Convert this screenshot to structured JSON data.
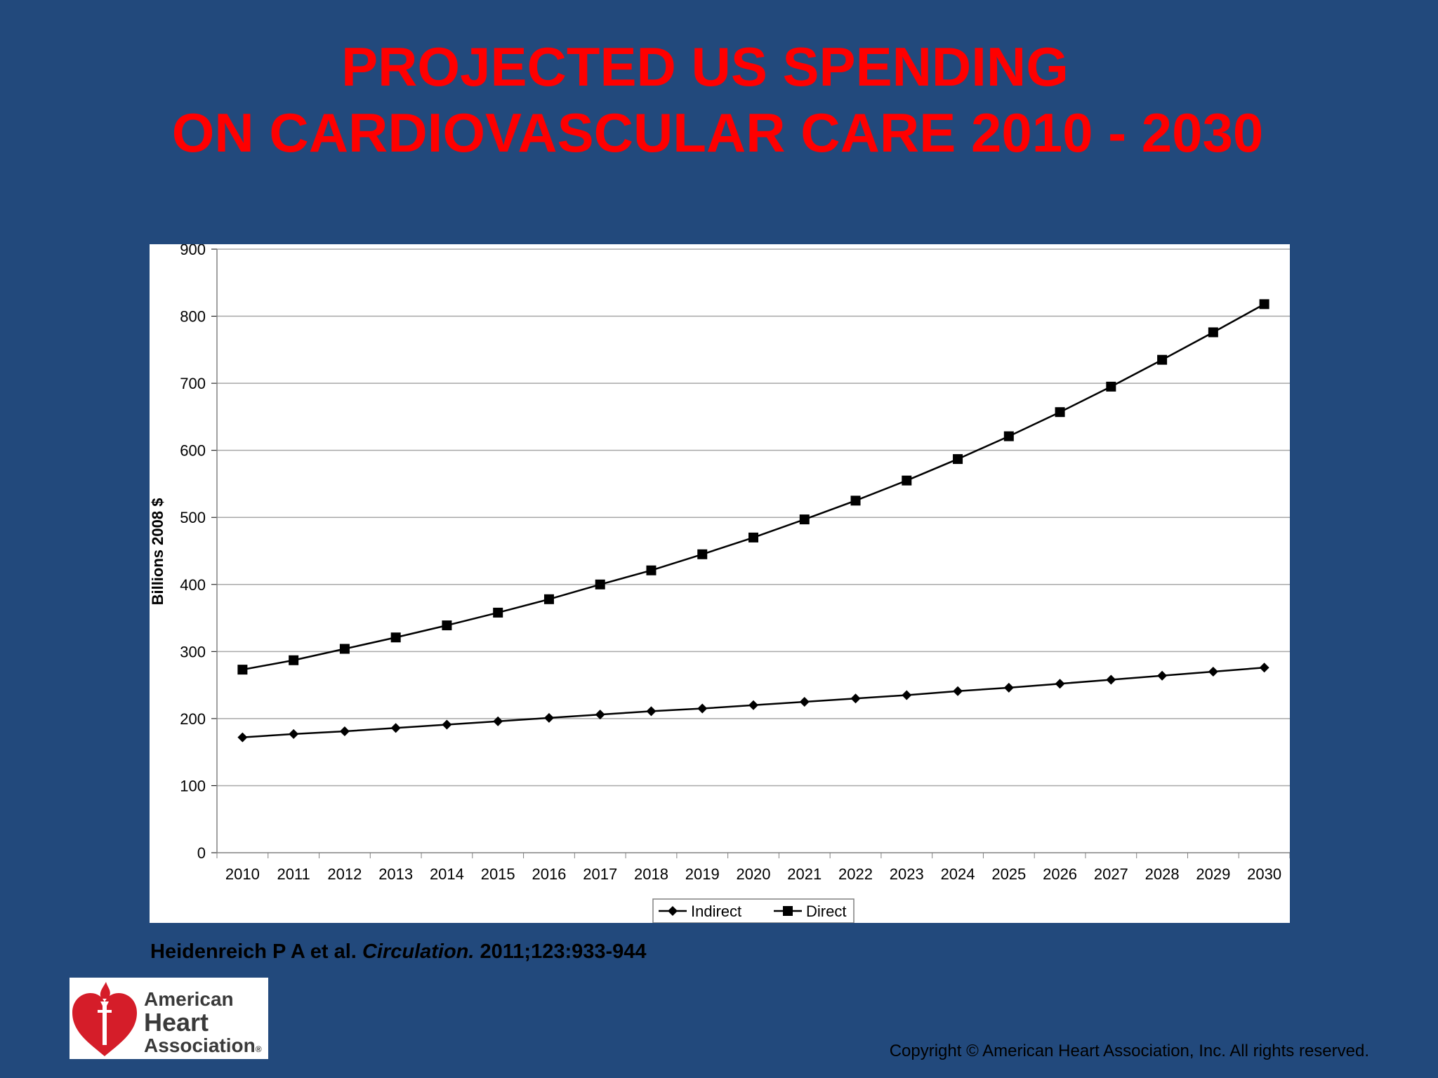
{
  "slide": {
    "title_line1": "PROJECTED US SPENDING",
    "title_line2": "ON CARDIOVASCULAR CARE 2010 - 2030",
    "citation_authors": "Heidenreich P A et al.",
    "citation_journal": "Circulation.",
    "citation_ref": "2011;123:933-944",
    "copyright": "Copyright © American Heart Association, Inc. All rights reserved.",
    "logo": {
      "line1": "American",
      "line2": "Heart",
      "line3": "Association",
      "mark": "®"
    }
  },
  "colors": {
    "background": "#22497c",
    "title": "#ff0000",
    "logo_red": "#d51d29"
  },
  "chart_data": {
    "type": "line",
    "title": "",
    "xlabel": "",
    "ylabel": "Billions 2008 $",
    "ylim": [
      0,
      900
    ],
    "yticks": [
      0,
      100,
      200,
      300,
      400,
      500,
      600,
      700,
      800,
      900
    ],
    "grid": true,
    "legend_position": "bottom-center",
    "categories": [
      "2010",
      "2011",
      "2012",
      "2013",
      "2014",
      "2015",
      "2016",
      "2017",
      "2018",
      "2019",
      "2020",
      "2021",
      "2022",
      "2023",
      "2024",
      "2025",
      "2026",
      "2027",
      "2028",
      "2029",
      "2030"
    ],
    "series": [
      {
        "name": "Indirect",
        "marker": "diamond",
        "values": [
          172,
          177,
          181,
          186,
          191,
          196,
          201,
          206,
          211,
          215,
          220,
          225,
          230,
          235,
          241,
          246,
          252,
          258,
          264,
          270,
          276
        ]
      },
      {
        "name": "Direct",
        "marker": "square",
        "values": [
          273,
          287,
          304,
          321,
          339,
          358,
          378,
          400,
          421,
          445,
          470,
          497,
          525,
          555,
          587,
          621,
          657,
          695,
          735,
          776,
          818
        ]
      }
    ]
  }
}
